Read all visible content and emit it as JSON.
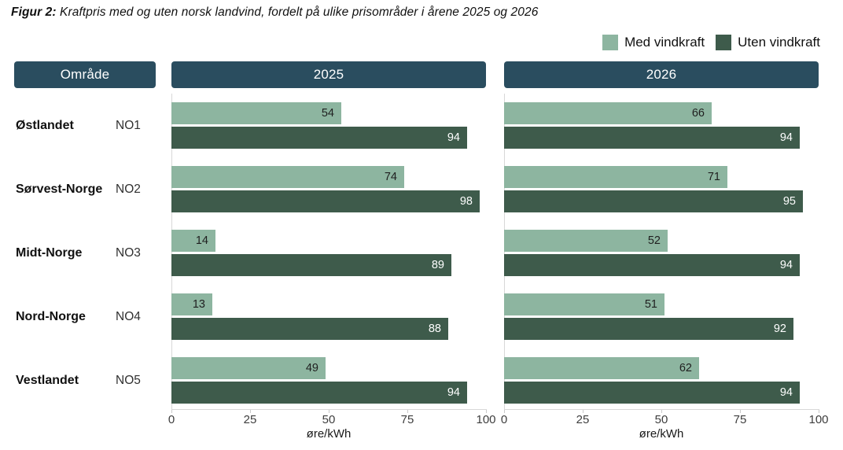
{
  "figure": {
    "title_prefix": "Figur 2:",
    "title_rest": " Kraftpris med og uten norsk landvind, fordelt på ulike prisområder i årene 2025 og 2026"
  },
  "legend": {
    "items": [
      {
        "label": "Med vindkraft",
        "color": "#8DB5A0"
      },
      {
        "label": "Uten vindkraft",
        "color": "#3E5B4B"
      }
    ]
  },
  "header": {
    "area_label": "Område",
    "year_labels": [
      "2025",
      "2026"
    ],
    "background": "#2A4D5F"
  },
  "colors": {
    "med": "#8DB5A0",
    "uten": "#3E5B4B",
    "header_teal": "#2A4D5F",
    "axis_gray": "#D8D8D8"
  },
  "chart_data": {
    "type": "bar",
    "orientation": "horizontal",
    "title": "Kraftpris med og uten norsk landvind, fordelt på ulike prisområder i årene 2025 og 2026",
    "categories": [
      "Østlandet",
      "Sørvest-Norge",
      "Midt-Norge",
      "Nord-Norge",
      "Vestlandet"
    ],
    "category_codes": [
      "NO1",
      "NO2",
      "NO3",
      "NO4",
      "NO5"
    ],
    "panels": [
      {
        "year": "2025",
        "series": [
          {
            "name": "Med vindkraft",
            "color": "#8DB5A0",
            "values": [
              54,
              74,
              14,
              13,
              49
            ]
          },
          {
            "name": "Uten vindkraft",
            "color": "#3E5B4B",
            "values": [
              94,
              98,
              89,
              88,
              94
            ]
          }
        ]
      },
      {
        "year": "2026",
        "series": [
          {
            "name": "Med vindkraft",
            "color": "#8DB5A0",
            "values": [
              66,
              71,
              52,
              51,
              62
            ]
          },
          {
            "name": "Uten vindkraft",
            "color": "#3E5B4B",
            "values": [
              94,
              95,
              94,
              92,
              94
            ]
          }
        ]
      }
    ],
    "xlim": [
      0,
      100
    ],
    "xticks": [
      0,
      25,
      50,
      75,
      100
    ],
    "xlabel": "øre/kWh",
    "grid": false,
    "legend_position": "top-right"
  }
}
